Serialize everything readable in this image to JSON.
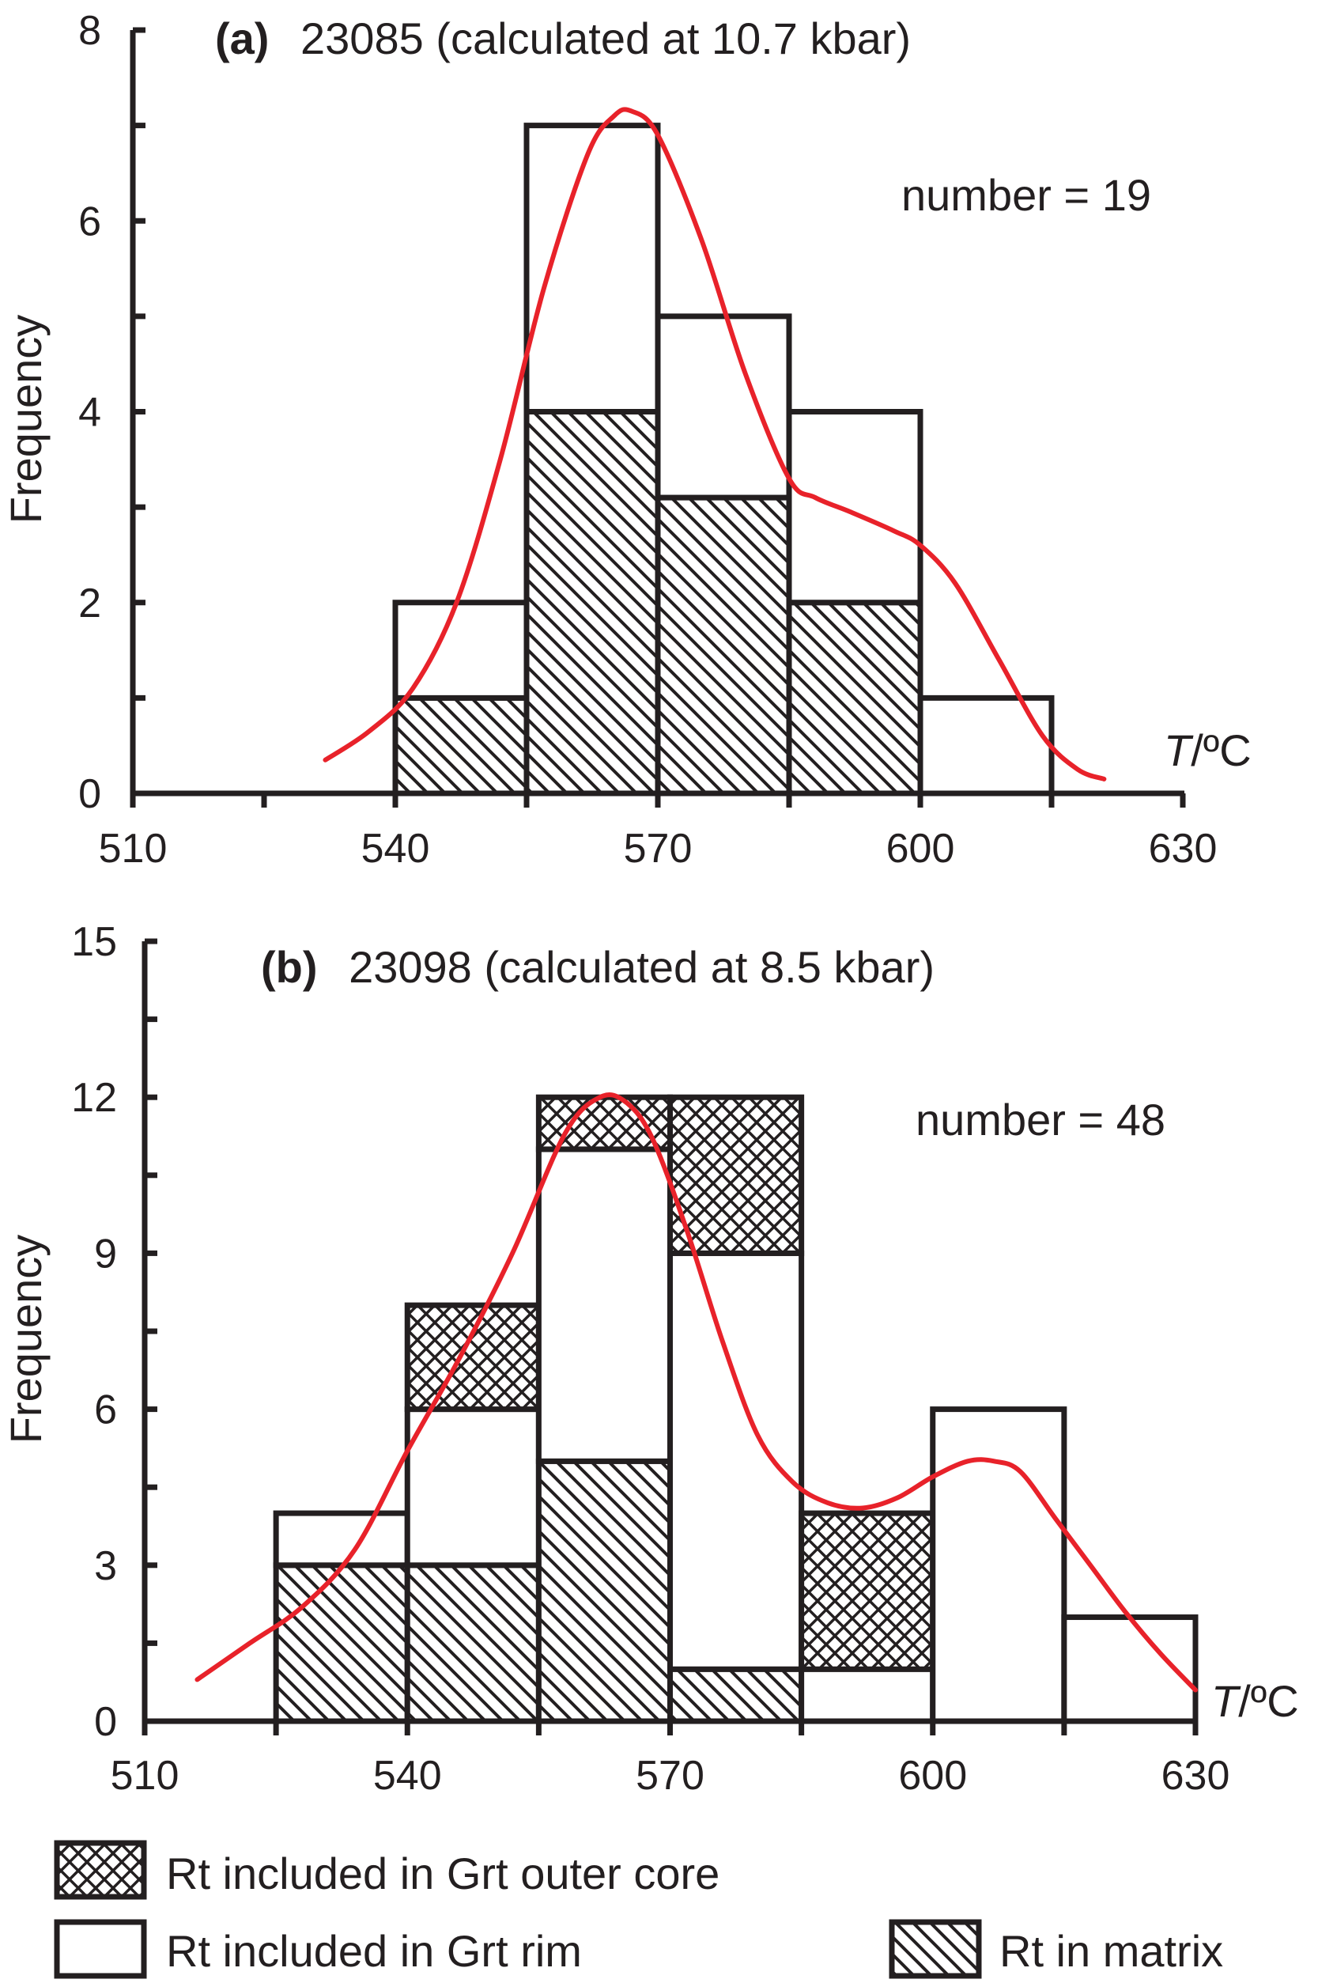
{
  "colors": {
    "ink": "#231f20",
    "curve": "#e8222a",
    "background": "#ffffff"
  },
  "legend": {
    "items": [
      {
        "key": "outer_core",
        "label": "Rt included in Grt outer core",
        "pattern": "crosshatch"
      },
      {
        "key": "rim",
        "label": "Rt included in Grt rim",
        "pattern": "empty"
      },
      {
        "key": "matrix",
        "label": "Rt in matrix",
        "pattern": "diagonal-hatch"
      }
    ]
  },
  "chart_data": [
    {
      "type": "bar",
      "panel_label": "(a)",
      "title": "23085 (calculated at 10.7 kbar)",
      "annotation": "number = 19",
      "xlabel_italic": "T",
      "xlabel_rest": "/ºC",
      "ylabel": "Frequency",
      "xlim": [
        510,
        630
      ],
      "ylim": [
        0,
        8
      ],
      "xticks": [
        510,
        540,
        570,
        600,
        630
      ],
      "yticks": [
        0,
        2,
        4,
        6,
        8
      ],
      "bin_width": 15,
      "bins": [
        {
          "x0": 540,
          "x1": 555,
          "matrix": 1,
          "rim": 1,
          "outer_core": 0
        },
        {
          "x0": 555,
          "x1": 570,
          "matrix": 4,
          "rim": 3,
          "outer_core": 0
        },
        {
          "x0": 570,
          "x1": 585,
          "matrix": 3.1,
          "rim": 1.9,
          "outer_core": 0
        },
        {
          "x0": 585,
          "x1": 600,
          "matrix": 2,
          "rim": 2,
          "outer_core": 0
        },
        {
          "x0": 600,
          "x1": 615,
          "matrix": 0,
          "rim": 1,
          "outer_core": 0
        }
      ],
      "curve": {
        "x": [
          532,
          537,
          542,
          547,
          552,
          557,
          562,
          565,
          567,
          570,
          575,
          580,
          585,
          588,
          592,
          597,
          600,
          604,
          609,
          614,
          618,
          621
        ],
        "y": [
          0.35,
          0.65,
          1.1,
          2.0,
          3.5,
          5.3,
          6.7,
          7.1,
          7.15,
          6.9,
          5.8,
          4.4,
          3.3,
          3.1,
          2.95,
          2.75,
          2.6,
          2.2,
          1.4,
          0.6,
          0.25,
          0.15
        ]
      }
    },
    {
      "type": "bar",
      "panel_label": "(b)",
      "title": "23098 (calculated at 8.5 kbar)",
      "annotation": "number = 48",
      "xlabel_italic": "T",
      "xlabel_rest": "/ºC",
      "ylabel": "Frequency",
      "xlim": [
        510,
        630
      ],
      "ylim": [
        0,
        15
      ],
      "xticks": [
        510,
        540,
        570,
        600,
        630
      ],
      "yticks": [
        0,
        3,
        6,
        9,
        12,
        15
      ],
      "bin_width": 15,
      "bins": [
        {
          "x0": 525,
          "x1": 540,
          "matrix": 3,
          "rim": 1,
          "outer_core": 0
        },
        {
          "x0": 540,
          "x1": 555,
          "matrix": 3,
          "rim": 3,
          "outer_core": 2
        },
        {
          "x0": 555,
          "x1": 570,
          "matrix": 5,
          "rim": 6,
          "outer_core": 1
        },
        {
          "x0": 570,
          "x1": 585,
          "matrix": 1,
          "rim": 8,
          "outer_core": 3
        },
        {
          "x0": 585,
          "x1": 600,
          "matrix": 0,
          "rim": 1,
          "outer_core": 3
        },
        {
          "x0": 600,
          "x1": 615,
          "matrix": 0,
          "rim": 6,
          "outer_core": 0
        },
        {
          "x0": 615,
          "x1": 630,
          "matrix": 0,
          "rim": 2,
          "outer_core": 0
        }
      ],
      "curve": {
        "x": [
          516,
          522,
          528,
          534,
          540,
          546,
          552,
          558,
          562,
          565,
          568,
          572,
          576,
          580,
          584,
          588,
          592,
          596,
          600,
          604,
          607,
          610,
          614,
          618,
          622,
          626,
          630
        ],
        "y": [
          0.8,
          1.5,
          2.2,
          3.3,
          5.2,
          7.0,
          9.0,
          11.3,
          12.0,
          11.9,
          11.2,
          9.4,
          7.3,
          5.5,
          4.6,
          4.2,
          4.1,
          4.3,
          4.7,
          5.0,
          5.0,
          4.8,
          3.9,
          3.0,
          2.1,
          1.3,
          0.6
        ]
      }
    }
  ]
}
